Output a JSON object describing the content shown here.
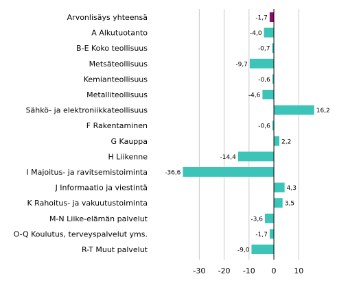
{
  "chart_data": {
    "type": "bar",
    "orientation": "horizontal",
    "categories": [
      "Arvonlisäys yhteensä",
      "A Alkutuotanto",
      "B-E Koko teollisuus",
      "Metsäteollisuus",
      "Kemianteollisuus",
      "Metalliteollisuus",
      "Sähkö- ja elektroniikkateollisuus",
      "F Rakentaminen",
      "G Kauppa",
      "H Liikenne",
      "I Majoitus- ja ravitsemistoiminta",
      "J Informaatio ja viestintä",
      "K Rahoitus- ja vakuutustoiminta",
      "M-N Liike-elämän palvelut",
      "O-Q Koulutus, terveyspalvelut yms.",
      "R-T Muut palvelut"
    ],
    "values": [
      -1.7,
      -4.0,
      -0.7,
      -9.7,
      -0.6,
      -4.6,
      16.2,
      -0.6,
      2.2,
      -14.4,
      -36.6,
      4.3,
      3.5,
      -3.6,
      -1.7,
      -9.0
    ],
    "value_labels": [
      "-1,7",
      "-4,0",
      "-0,7",
      "-9,7",
      "-0,6",
      "-4,6",
      "16,2",
      "-0,6",
      "2,2",
      "-14,4",
      "-36,6",
      "4,3",
      "3,5",
      "-3,6",
      "-1,7",
      "-9,0"
    ],
    "xlim": [
      -45,
      24
    ],
    "xticks": [
      -30,
      -20,
      -10,
      0,
      10
    ],
    "xtick_labels": [
      "-30",
      "-20",
      "-10",
      "0",
      "10"
    ],
    "title": "",
    "xlabel": "",
    "ylabel": "",
    "grid": true,
    "legend": "none",
    "colors": {
      "total": "#8c0b6e",
      "bar": "#3cc4b8"
    },
    "highlight_index": 0
  }
}
